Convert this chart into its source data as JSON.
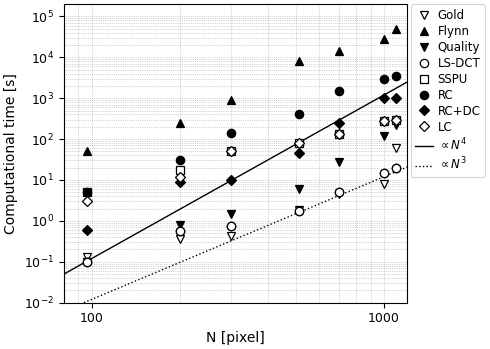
{
  "xlabel": "N [pixel]",
  "ylabel": "Computational time [s]",
  "xlim": [
    80,
    1200
  ],
  "ylim": [
    0.01,
    200000
  ],
  "N_values": [
    96,
    200,
    300,
    512,
    700,
    1000,
    1100
  ],
  "Gold": [
    0.13,
    0.35,
    0.42,
    1.8,
    4.5,
    8.0,
    60.0
  ],
  "Flynn": [
    50,
    250,
    900,
    8000,
    14000,
    28000,
    48000
  ],
  "Quality": [
    0.1,
    0.8,
    1.5,
    6.0,
    28.0,
    120.0,
    220.0
  ],
  "LS_DCT": [
    0.1,
    0.55,
    0.75,
    1.7,
    5.0,
    15.0,
    20.0
  ],
  "SSPU": [
    5.0,
    18.0,
    50.0,
    80.0,
    130.0,
    280.0,
    300.0
  ],
  "RC": [
    5.0,
    30.0,
    140.0,
    400.0,
    1500.0,
    3000.0,
    3500.0
  ],
  "RC_DC": [
    0.6,
    9.0,
    10.0,
    45.0,
    250.0,
    1000.0,
    1000.0
  ],
  "LC": [
    3.0,
    12.0,
    50.0,
    80.0,
    130.0,
    270.0,
    300.0
  ],
  "ref_N4_coeff": 1.2e-09,
  "ref_N3_coeff": 1.2e-08,
  "legend_fontsize": 8.5,
  "tick_fontsize": 9,
  "label_fontsize": 10
}
